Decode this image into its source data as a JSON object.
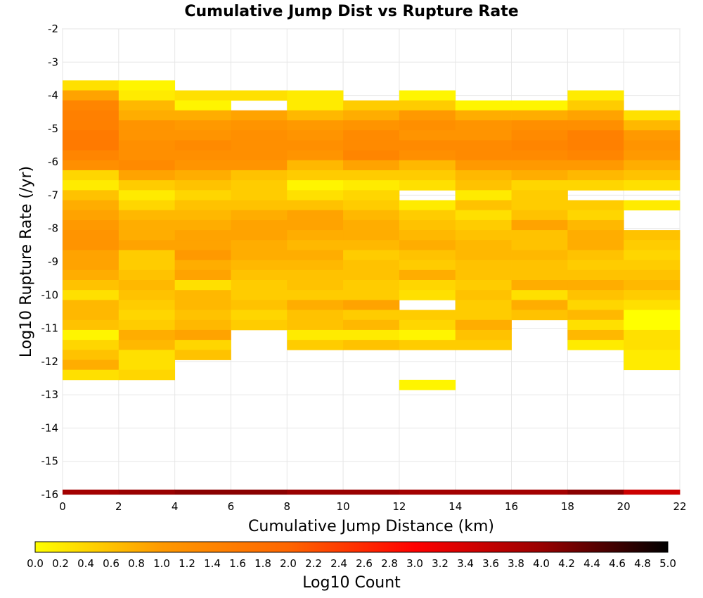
{
  "chart_data": {
    "type": "heatmap",
    "title": "Cumulative Jump Dist vs Rupture Rate",
    "xlabel": "Cumulative Jump Distance (km)",
    "ylabel": "Log10 Rupture Rate (/yr)",
    "xlim": [
      0,
      22
    ],
    "ylim": [
      -16,
      -2
    ],
    "x_ticks": [
      "0",
      "2",
      "4",
      "6",
      "8",
      "10",
      "12",
      "14",
      "16",
      "18",
      "20",
      "22"
    ],
    "y_ticks": [
      "-2",
      "-3",
      "-4",
      "-5",
      "-6",
      "-7",
      "-8",
      "-9",
      "-10",
      "-11",
      "-12",
      "-13",
      "-14",
      "-15",
      "-16"
    ],
    "x_bin_width": 2,
    "y_bin_height": 0.3,
    "grid": true,
    "colorbar": {
      "label": "Log10 Count",
      "range": [
        0,
        5
      ],
      "ticks": [
        "0.0",
        "0.2",
        "0.4",
        "0.6",
        "0.8",
        "1.0",
        "1.2",
        "1.4",
        "1.6",
        "1.8",
        "2.0",
        "2.2",
        "2.4",
        "2.6",
        "2.8",
        "3.0",
        "3.2",
        "3.4",
        "3.6",
        "3.8",
        "4.0",
        "4.2",
        "4.4",
        "4.6",
        "4.8",
        "5.0"
      ],
      "colors": [
        "#ffff00",
        "#ff9900",
        "#ff6600",
        "#ff0000",
        "#990000",
        "#000000"
      ],
      "orientation": "horizontal"
    },
    "columns": [
      {
        "x_start": 0,
        "y_top": -3.55,
        "values": [
          0.3,
          0.9,
          1.4,
          1.5,
          1.5,
          1.6,
          1.6,
          1.4,
          1.2,
          0.4,
          0.2,
          0.6,
          0.8,
          0.9,
          1.0,
          1.1,
          1.1,
          0.9,
          0.9,
          0.8,
          0.6,
          0.3,
          0.7,
          0.7,
          0.6,
          0.1,
          0.4,
          0.6,
          0.8,
          0.3
        ]
      },
      {
        "x_start": 2,
        "y_top": -3.55,
        "values": [
          0.1,
          0.2,
          0.7,
          0.8,
          1.1,
          1.1,
          1.2,
          1.2,
          1.3,
          0.9,
          0.5,
          0.2,
          0.4,
          0.7,
          0.8,
          0.8,
          0.9,
          0.5,
          0.5,
          0.6,
          0.7,
          0.6,
          0.5,
          0.4,
          0.5,
          0.8,
          0.7,
          0.3,
          0.3,
          0.4
        ]
      },
      {
        "x_start": 4,
        "y_top": -3.85,
        "values": [
          0.3,
          0.1,
          0.8,
          1.0,
          1.1,
          1.3,
          1.2,
          1.1,
          0.8,
          0.6,
          0.4,
          0.6,
          0.7,
          0.8,
          0.9,
          0.9,
          1.0,
          0.8,
          0.9,
          0.3,
          0.7,
          0.7,
          0.6,
          0.7,
          0.9,
          0.4,
          0.6
        ]
      },
      {
        "x_start": 6,
        "y_top": -3.85,
        "values": [
          0.3,
          null,
          0.9,
          1.1,
          1.2,
          1.2,
          1.2,
          1.1,
          0.6,
          0.5,
          0.5,
          0.6,
          0.8,
          0.9,
          0.9,
          0.8,
          0.8,
          0.7,
          0.6,
          0.5,
          0.5,
          0.6,
          0.4,
          0.5
        ]
      },
      {
        "x_start": 8,
        "y_top": -3.85,
        "values": [
          0.2,
          0.2,
          0.7,
          1.0,
          1.1,
          1.2,
          1.1,
          0.7,
          0.5,
          0.1,
          0.3,
          0.6,
          0.9,
          0.9,
          0.8,
          0.7,
          0.8,
          0.7,
          0.6,
          0.6,
          0.5,
          0.8,
          0.6,
          0.6,
          0.2,
          0.5
        ]
      },
      {
        "x_start": 10,
        "y_top": -4.15,
        "values": [
          0.5,
          0.8,
          1.1,
          1.3,
          1.3,
          1.4,
          0.9,
          0.5,
          0.2,
          0.4,
          0.5,
          0.7,
          0.8,
          0.8,
          0.7,
          0.5,
          0.6,
          0.6,
          0.5,
          0.5,
          0.9,
          0.5,
          0.7,
          0.2,
          0.6
        ]
      },
      {
        "x_start": 12,
        "y_top": -3.85,
        "values": [
          0.1,
          0.5,
          1.0,
          1.2,
          1.1,
          1.3,
          1.2,
          0.7,
          0.5,
          0.3,
          null,
          0.2,
          0.5,
          0.6,
          0.7,
          0.8,
          0.6,
          0.5,
          0.8,
          0.4,
          0.3,
          null,
          0.5,
          0.4,
          0.1,
          0.5,
          null,
          null,
          null,
          0.1
        ]
      },
      {
        "x_start": 14,
        "y_top": -4.15,
        "values": [
          0.1,
          0.8,
          1.1,
          1.1,
          1.3,
          1.3,
          1.0,
          0.7,
          0.6,
          0.2,
          0.6,
          0.3,
          0.5,
          0.6,
          0.7,
          0.7,
          0.6,
          0.6,
          0.5,
          0.6,
          0.5,
          0.5,
          0.8,
          0.6,
          0.5
        ]
      },
      {
        "x_start": 16,
        "y_top": -4.15,
        "values": [
          0.1,
          0.8,
          1.2,
          1.3,
          1.4,
          1.3,
          1.0,
          0.8,
          0.4,
          0.5,
          0.5,
          0.6,
          0.9,
          0.6,
          0.6,
          0.7,
          0.6,
          0.6,
          0.8,
          0.3,
          0.8,
          0.6
        ]
      },
      {
        "x_start": 18,
        "y_top": -3.85,
        "values": [
          0.2,
          0.5,
          0.9,
          1.2,
          1.5,
          1.5,
          1.4,
          1.0,
          0.7,
          0.4,
          null,
          0.5,
          0.4,
          0.7,
          0.8,
          0.8,
          0.6,
          0.5,
          0.6,
          0.8,
          0.6,
          0.4,
          0.7,
          0.3,
          0.7,
          0.2
        ]
      },
      {
        "x_start": 20,
        "y_top": -4.45,
        "values": [
          0.3,
          0.7,
          1.0,
          1.1,
          1.0,
          0.8,
          0.6,
          0.3,
          null,
          0.2,
          null,
          null,
          0.6,
          0.5,
          0.4,
          0.5,
          0.6,
          0.7,
          0.5,
          0.3,
          0.0,
          0.0,
          0.3,
          0.3,
          0.2,
          0.2
        ]
      }
    ],
    "bottom_row": {
      "y": -16,
      "values": [
        3.9,
        4.0,
        4.1,
        4.1,
        4.0,
        4.0,
        3.9,
        3.9,
        3.9,
        4.1,
        3.5
      ]
    }
  }
}
